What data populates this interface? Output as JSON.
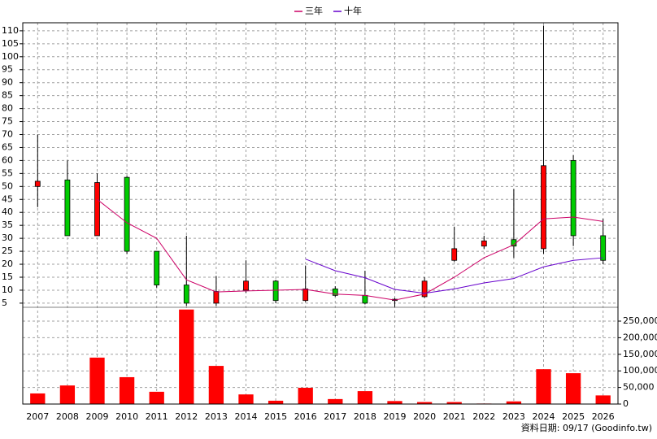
{
  "chart_data": {
    "type": "candlestick",
    "categories": [
      "2007",
      "2008",
      "2009",
      "2010",
      "2011",
      "2012",
      "2013",
      "2014",
      "2015",
      "2016",
      "2017",
      "2018",
      "2019",
      "2020",
      "2021",
      "2022",
      "2023",
      "2024",
      "2025",
      "2026"
    ],
    "open": [
      50,
      52.5,
      31,
      53.5,
      25,
      12,
      5,
      10,
      13.5,
      6,
      10.5,
      8,
      6.5,
      7.5,
      21.5,
      27,
      29.5,
      26,
      60,
      31
    ],
    "high": [
      70,
      60,
      55,
      54,
      25,
      31,
      15.5,
      21.5,
      14,
      19.5,
      11.5,
      17.5,
      7,
      15,
      34.5,
      31,
      49,
      112,
      62,
      37.5
    ],
    "low": [
      42,
      31,
      31,
      24,
      11,
      4,
      4,
      9,
      5,
      5.5,
      7.5,
      4.5,
      3.5,
      7,
      21,
      26,
      22.5,
      24,
      27,
      20
    ],
    "close": [
      52,
      31,
      51.5,
      25,
      12,
      5,
      9.5,
      13.5,
      6,
      10.5,
      8,
      5,
      6,
      13.5,
      26,
      29,
      27,
      58,
      31,
      21.5
    ],
    "up_color": "#ff0000",
    "down_color": "#00cc00",
    "series": [
      {
        "name": "三年",
        "color": "#cc0066",
        "values": [
          null,
          null,
          45,
          36,
          30,
          14,
          9.3,
          9.7,
          10,
          10.3,
          8.5,
          8,
          6.2,
          8.5,
          15,
          22.5,
          27.5,
          37.5,
          38.2,
          36.5
        ]
      },
      {
        "name": "十年",
        "color": "#6600cc",
        "values": [
          null,
          null,
          null,
          null,
          null,
          null,
          null,
          null,
          null,
          22,
          17.5,
          14.8,
          10.3,
          8.8,
          10.5,
          12.8,
          14.5,
          19,
          21.5,
          22.5
        ]
      }
    ],
    "ylim": [
      3.4,
      113.1
    ],
    "yticks": [
      5,
      10,
      15,
      20,
      25,
      30,
      35,
      40,
      45,
      50,
      55,
      60,
      65,
      70,
      75,
      80,
      85,
      90,
      95,
      100,
      105,
      110
    ],
    "grid": true,
    "volume": {
      "color": "#ff0000",
      "values": [
        32000,
        56000,
        140000,
        81000,
        37000,
        285000,
        115000,
        29000,
        10000,
        49000,
        15000,
        39000,
        9000,
        6000,
        6000,
        1500,
        8000,
        105000,
        93000,
        26000
      ],
      "ylim": [
        0,
        291700
      ],
      "yticks": [
        0,
        {
          "value": 50000,
          "label": "50,000"
        },
        {
          "value": 100000,
          "label": "100,000"
        },
        {
          "value": 150000,
          "label": "150,000"
        },
        {
          "value": 200000,
          "label": "200,000"
        },
        {
          "value": 250000,
          "label": "250,000"
        }
      ]
    },
    "footer": "資料日期: 09/17  (Goodinfo.tw)"
  }
}
